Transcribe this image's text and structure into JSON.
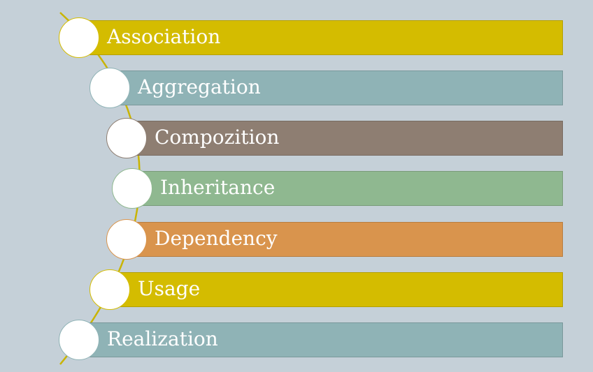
{
  "diagram": {
    "items": [
      {
        "label": "Association",
        "color": "#d4bc00"
      },
      {
        "label": "Aggregation",
        "color": "#8fb3b6"
      },
      {
        "label": "Compozition",
        "color": "#8e7e72"
      },
      {
        "label": "Inheritance",
        "color": "#8fb890"
      },
      {
        "label": "Dependency",
        "color": "#d9944d"
      },
      {
        "label": "Usage",
        "color": "#d4bc00"
      },
      {
        "label": "Realization",
        "color": "#8fb3b6"
      }
    ],
    "connector_color": "#c9b400"
  }
}
